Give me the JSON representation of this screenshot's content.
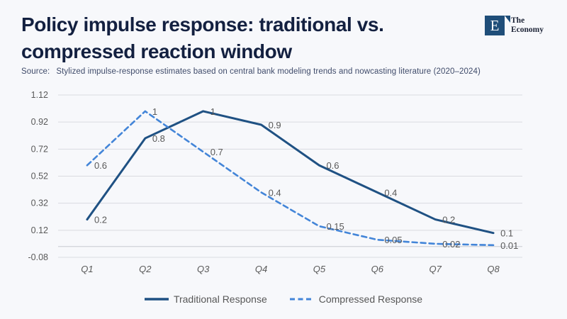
{
  "page": {
    "background": "#f7f8fb"
  },
  "header": {
    "title_line1": "Policy impulse response: traditional vs.",
    "title_line2": "compressed reaction window",
    "source_label": "Source:",
    "source_text": "Stylized impulse-response estimates based on central bank modeling trends and nowcasting literature (2020–2024)"
  },
  "brand": {
    "mark_letter": "E",
    "name_line1": "The",
    "name_line2": "Economy",
    "mark_color": "#1f4e79",
    "text_color": "#1c2336"
  },
  "chart_data": {
    "type": "line",
    "title": "Policy impulse response: traditional vs. compressed reaction window",
    "categories": [
      "Q1",
      "Q2",
      "Q3",
      "Q4",
      "Q5",
      "Q6",
      "Q7",
      "Q8"
    ],
    "series": [
      {
        "name": "Traditional Response",
        "values": [
          0.2,
          0.8,
          1,
          0.9,
          0.6,
          0.4,
          0.2,
          0.1
        ],
        "color": "#1f5183",
        "style": "solid"
      },
      {
        "name": "Compressed Response",
        "values": [
          0.6,
          1,
          0.7,
          0.4,
          0.15,
          0.05,
          0.02,
          0.01
        ],
        "color": "#4385d8",
        "style": "dashed"
      }
    ],
    "y_ticks": [
      1.12,
      0.92,
      0.72,
      0.52,
      0.32,
      0.12,
      -0.08
    ],
    "ylim": [
      -0.08,
      1.12
    ],
    "xlabel": "",
    "ylabel": "",
    "grid": true,
    "zero_line": true,
    "data_labels": true,
    "legend_position": "bottom",
    "colors": {
      "grid": "#d9dbe0",
      "zero_line": "#c7cad1",
      "data_label": "#595959",
      "tick_label": "#595959",
      "category_label": "#595959"
    }
  }
}
